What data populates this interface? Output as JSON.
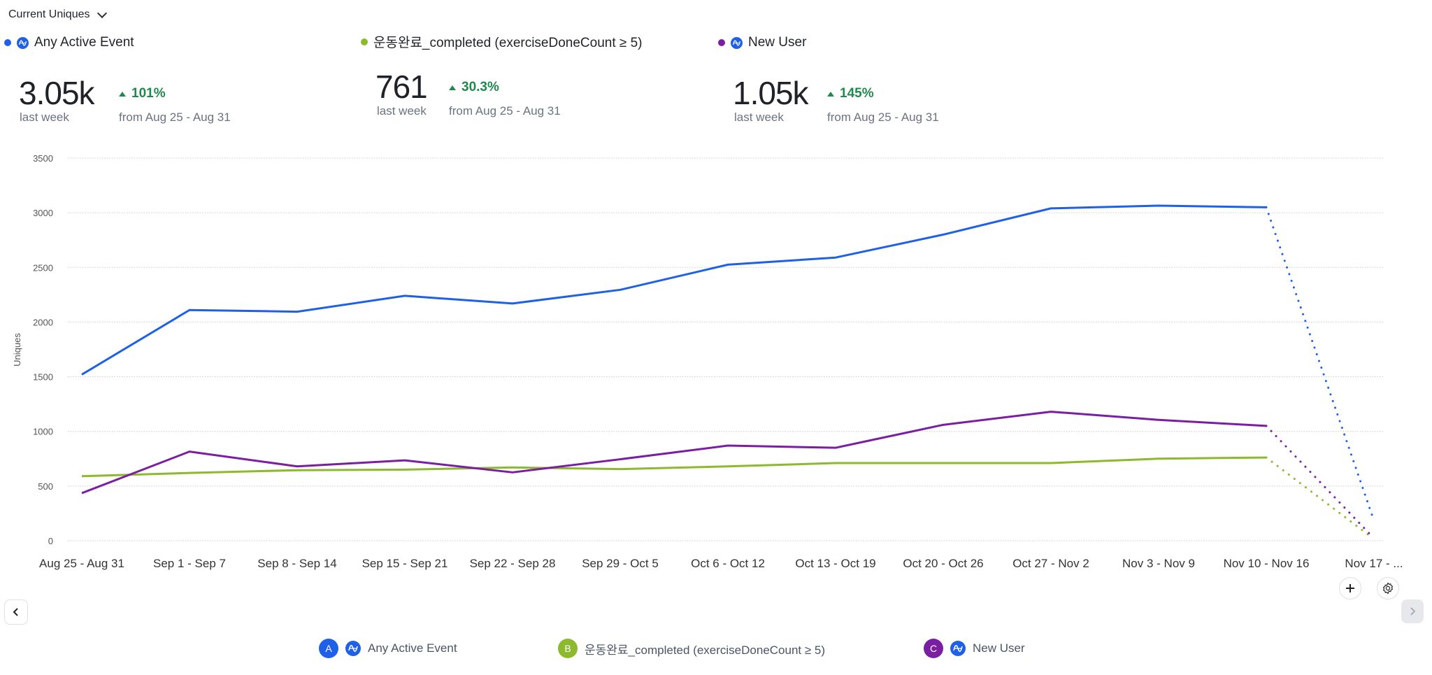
{
  "header": {
    "metric_dropdown_label": "Current Uniques"
  },
  "series_summary": [
    {
      "id": "A",
      "name": "Any Active Event",
      "color": "#1e61e8",
      "has_amplitude_icon": true,
      "value": "3.05k",
      "period_label": "last week",
      "change": "101%",
      "change_direction": "up",
      "compare_label": "from Aug 25 - Aug 31"
    },
    {
      "id": "B",
      "name": "운동완료_completed (exerciseDoneCount ≥ 5)",
      "color": "#8db92e",
      "has_amplitude_icon": false,
      "value": "761",
      "period_label": "last week",
      "change": "30.3%",
      "change_direction": "up",
      "compare_label": "from Aug 25 - Aug 31"
    },
    {
      "id": "C",
      "name": "New User",
      "color": "#7b1fa2",
      "has_amplitude_icon": true,
      "value": "1.05k",
      "period_label": "last week",
      "change": "145%",
      "change_direction": "up",
      "compare_label": "from Aug 25 - Aug 31"
    }
  ],
  "chart_data": {
    "type": "line",
    "title": "",
    "xlabel": "",
    "ylabel": "Uniques",
    "ylim": [
      0,
      3500
    ],
    "yticks": [
      0,
      500,
      1000,
      1500,
      2000,
      2500,
      3000,
      3500
    ],
    "grid": true,
    "categories": [
      "Aug 25 - Aug 31",
      "Sep 1 - Sep 7",
      "Sep 8 - Sep 14",
      "Sep 15 - Sep 21",
      "Sep 22 - Sep 28",
      "Sep 29 - Oct 5",
      "Oct 6 - Oct 12",
      "Oct 13 - Oct 19",
      "Oct 20 - Oct 26",
      "Oct 27 - Nov 2",
      "Nov 3 - Nov 9",
      "Nov 10 - Nov 16",
      "Nov 17 - ..."
    ],
    "incomplete_last_period": true,
    "series": [
      {
        "name": "Any Active Event",
        "color": "#1e61e8",
        "values": [
          1520,
          2110,
          2095,
          2240,
          2170,
          2295,
          2525,
          2590,
          2800,
          3040,
          3065,
          3050,
          220
        ]
      },
      {
        "name": "운동완료_completed (exerciseDoneCount ≥ 5)",
        "color": "#8db92e",
        "values": [
          590,
          620,
          645,
          650,
          670,
          655,
          680,
          710,
          710,
          710,
          750,
          761,
          25
        ]
      },
      {
        "name": "New User",
        "color": "#7b1fa2",
        "values": [
          435,
          815,
          680,
          735,
          625,
          745,
          870,
          850,
          1060,
          1180,
          1105,
          1050,
          35
        ]
      }
    ],
    "legend_position": "bottom"
  },
  "controls": {
    "add_label": "+",
    "prev_label": "‹",
    "next_label": "›"
  },
  "legend": [
    {
      "badge": "A",
      "name": "Any Active Event",
      "color": "#1e61e8",
      "has_amplitude_icon": true
    },
    {
      "badge": "B",
      "name": "운동완료_completed (exerciseDoneCount ≥ 5)",
      "color": "#8db92e",
      "has_amplitude_icon": false
    },
    {
      "badge": "C",
      "name": "New User",
      "color": "#7b1fa2",
      "has_amplitude_icon": true
    }
  ]
}
